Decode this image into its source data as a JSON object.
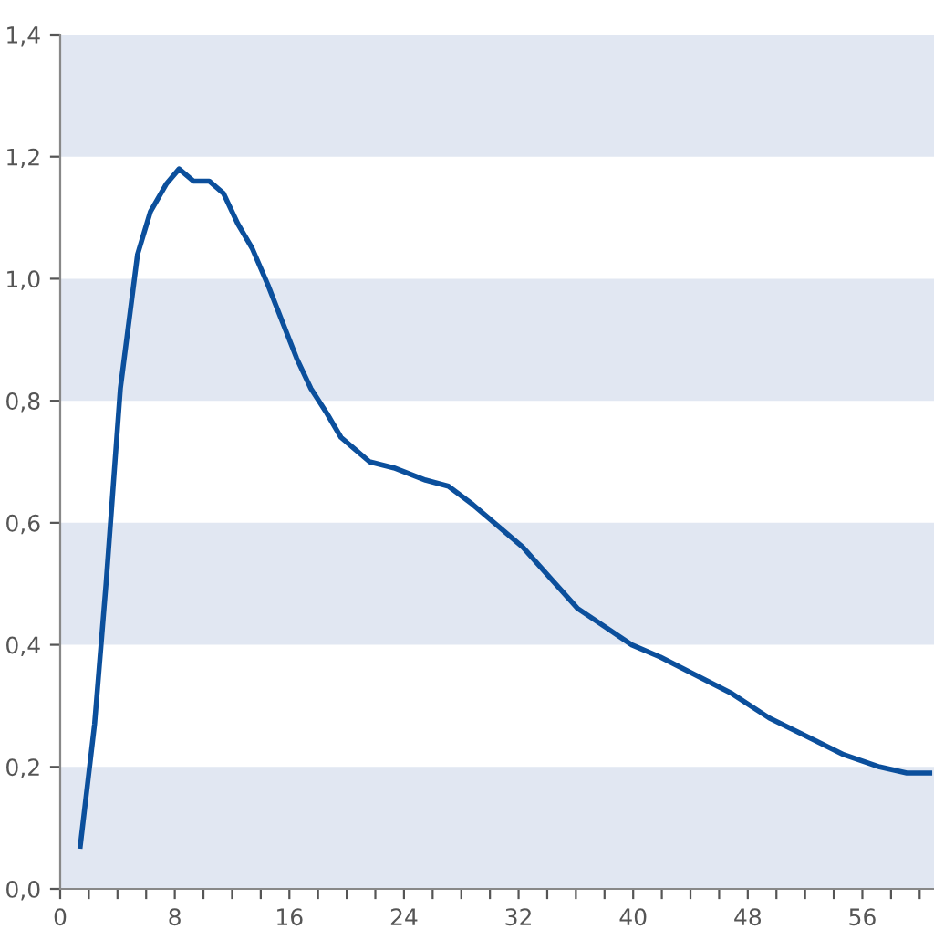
{
  "chart_data": {
    "type": "line",
    "x": [
      1.4,
      2.4,
      3.2,
      4.2,
      5.4,
      6.3,
      7.4,
      8.3,
      9.3,
      10.4,
      11.4,
      12.4,
      13.4,
      14.5,
      15.5,
      16.5,
      17.5,
      18.6,
      19.6,
      20.6,
      21.6,
      23.3,
      25.5,
      27.1,
      28.8,
      30.3,
      32.3,
      34.2,
      36.1,
      38.0,
      39.9,
      41.9,
      44.4,
      46.9,
      49.5,
      52.1,
      54.7,
      57.2,
      59.1,
      60.7
    ],
    "series": [
      {
        "color": "#0b4f9c",
        "values": [
          0.07,
          0.27,
          0.5,
          0.82,
          1.04,
          1.11,
          1.155,
          1.18,
          1.16,
          1.16,
          1.14,
          1.09,
          1.05,
          0.99,
          0.93,
          0.87,
          0.82,
          0.78,
          0.74,
          0.72,
          0.7,
          0.69,
          0.67,
          0.66,
          0.63,
          0.6,
          0.56,
          0.51,
          0.46,
          0.43,
          0.4,
          0.38,
          0.35,
          0.32,
          0.28,
          0.25,
          0.22,
          0.2,
          0.19,
          0.19
        ]
      }
    ],
    "xlim": [
      0,
      61
    ],
    "xticks": [
      0,
      {
        "value": 2,
        "label": null
      },
      {
        "value": 4,
        "label": null
      },
      {
        "value": 6,
        "label": null
      },
      8,
      {
        "value": 10,
        "label": null
      },
      {
        "value": 12,
        "label": null
      },
      {
        "value": 14,
        "label": null
      },
      16,
      {
        "value": 18,
        "label": null
      },
      {
        "value": 20,
        "label": null
      },
      {
        "value": 22,
        "label": null
      },
      24,
      {
        "value": 26,
        "label": null
      },
      {
        "value": 28,
        "label": null
      },
      {
        "value": 30,
        "label": null
      },
      32,
      {
        "value": 34,
        "label": null
      },
      {
        "value": 36,
        "label": null
      },
      {
        "value": 38,
        "label": null
      },
      40,
      {
        "value": 42,
        "label": null
      },
      {
        "value": 44,
        "label": null
      },
      {
        "value": 46,
        "label": null
      },
      48,
      {
        "value": 50,
        "label": null
      },
      {
        "value": 52,
        "label": null
      },
      {
        "value": 54,
        "label": null
      },
      56,
      {
        "value": 58,
        "label": null
      },
      {
        "value": 60,
        "label": null
      }
    ],
    "ylim": [
      0,
      1.4
    ],
    "yticks": [
      {
        "value": 0,
        "label": "0,0"
      },
      {
        "value": 0.2,
        "label": "0,2"
      },
      {
        "value": 0.4,
        "label": "0,4"
      },
      {
        "value": 0.6,
        "label": "0,6"
      },
      {
        "value": 0.8,
        "label": "0,8"
      },
      {
        "value": 1.0,
        "label": "1,0"
      },
      {
        "value": 1.2,
        "label": "1,2"
      },
      {
        "value": 1.4,
        "label": "1,4"
      }
    ],
    "bands": [
      {
        "axis": "y",
        "from": 0,
        "to": 0.2,
        "color": "#e1e7f2"
      },
      {
        "axis": "y",
        "from": 0.4,
        "to": 0.6,
        "color": "#e1e7f2"
      },
      {
        "axis": "y",
        "from": 0.8,
        "to": 1.0,
        "color": "#e1e7f2"
      },
      {
        "axis": "y",
        "from": 1.2,
        "to": 1.4,
        "color": "#e1e7f2"
      }
    ],
    "grid": false,
    "legend": false,
    "marker": "none",
    "line_style": "solid"
  }
}
